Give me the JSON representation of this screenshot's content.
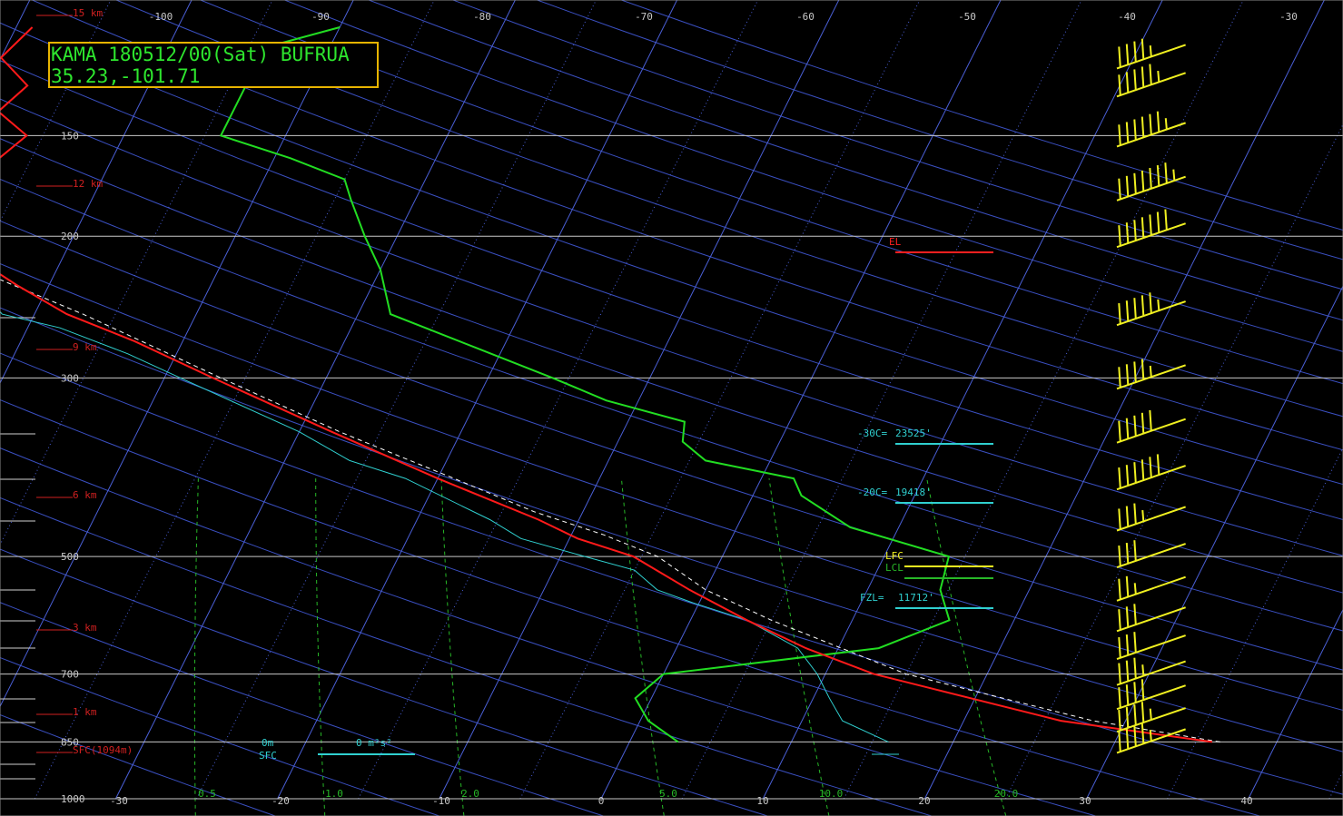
{
  "header": {
    "station_line": "KAMA 180512/00(Sat) BUFRUA",
    "location_line": "35.23,-101.71"
  },
  "colors": {
    "background": "#000000",
    "isobar": "#c8c8c8",
    "isotherm": "#4a5fd6",
    "dry_adiabat": "#3a4fc0",
    "mixing_ratio": "#27b827",
    "temperature": "#ff1a1a",
    "virtual_temperature": "#ff3030",
    "dewpoint": "#22dd22",
    "wetbulb": "#30d0d0",
    "parcel": "#ffffff",
    "wind_barb": "#f0f020",
    "height_label": "#d02020",
    "title_border": "#e8b400",
    "title_text": "#2ee62e"
  },
  "chart_data": {
    "type": "line",
    "chart_kind": "skew-t log-p sounding",
    "xlabel": "",
    "ylabel": "",
    "pressure_range": [
      1000,
      100
    ],
    "surface_temp_axis_range": [
      -30,
      40
    ],
    "top_temp_labels": [
      "-100",
      "-90",
      "-80",
      "-70",
      "-60",
      "-50",
      "-40",
      "-30"
    ],
    "bottom_temp_labels": [
      "-30",
      "-20",
      "-10",
      "0",
      "10",
      "20",
      "30",
      "40"
    ],
    "pressure_labels": [
      "150",
      "200",
      "300",
      "500",
      "700",
      "850",
      "1000"
    ],
    "height_labels": [
      "15 km",
      "12 km",
      "9 km",
      "6 km",
      "3 km",
      "1 km",
      "SFC(1094m)"
    ],
    "mixing_ratio_labels": [
      "0.5",
      "1.0",
      "2.0",
      "5.0",
      "10.0",
      "20.0"
    ],
    "series": [
      {
        "id": "temperature",
        "points": [
          [
            850,
            36
          ],
          [
            800,
            26
          ],
          [
            700,
            13
          ],
          [
            650,
            8
          ],
          [
            600,
            3.5
          ],
          [
            550,
            -1
          ],
          [
            500,
            -5.5
          ],
          [
            475,
            -9.5
          ],
          [
            450,
            -12.5
          ],
          [
            400,
            -20
          ],
          [
            350,
            -28
          ],
          [
            300,
            -37
          ],
          [
            270,
            -43
          ],
          [
            250,
            -48
          ],
          [
            230,
            -52
          ],
          [
            210,
            -56
          ],
          [
            200,
            -58.5
          ],
          [
            190,
            -57
          ],
          [
            180,
            -58
          ],
          [
            170,
            -57
          ],
          [
            160,
            -57
          ],
          [
            150,
            -56
          ],
          [
            140,
            -58.5
          ],
          [
            130,
            -57.5
          ],
          [
            120,
            -60
          ],
          [
            110,
            -59
          ]
        ]
      },
      {
        "id": "dewpoint",
        "points": [
          [
            850,
            3
          ],
          [
            800,
            0.5
          ],
          [
            750,
            -1
          ],
          [
            700,
            0
          ],
          [
            650,
            12.5
          ],
          [
            600,
            16
          ],
          [
            550,
            14.5
          ],
          [
            500,
            14
          ],
          [
            460,
            7
          ],
          [
            420,
            3
          ],
          [
            400,
            2
          ],
          [
            380,
            -4
          ],
          [
            360,
            -6
          ],
          [
            340,
            -6.5
          ],
          [
            320,
            -12
          ],
          [
            300,
            -16
          ],
          [
            250,
            -28
          ],
          [
            220,
            -30
          ],
          [
            200,
            -32
          ],
          [
            180,
            -34
          ],
          [
            170,
            -35
          ],
          [
            160,
            -39
          ],
          [
            150,
            -44
          ],
          [
            130,
            -44
          ],
          [
            120,
            -46
          ],
          [
            110,
            -40
          ]
        ]
      },
      {
        "id": "wetbulb",
        "points": [
          [
            850,
            16
          ],
          [
            800,
            12.5
          ],
          [
            750,
            11
          ],
          [
            700,
            9.5
          ],
          [
            650,
            7.5
          ],
          [
            600,
            3.5
          ],
          [
            570,
            -0.5
          ],
          [
            550,
            -3
          ],
          [
            520,
            -5
          ],
          [
            500,
            -8.5
          ],
          [
            475,
            -13
          ],
          [
            450,
            -15.5
          ],
          [
            400,
            -22
          ],
          [
            380,
            -26
          ],
          [
            350,
            -30
          ],
          [
            300,
            -39
          ],
          [
            280,
            -43
          ],
          [
            260,
            -48
          ],
          [
            250,
            -52
          ],
          [
            210,
            -57
          ]
        ]
      },
      {
        "id": "parcel",
        "points": [
          [
            850,
            36.5
          ],
          [
            800,
            28
          ],
          [
            700,
            15
          ],
          [
            600,
            5
          ],
          [
            550,
            0
          ],
          [
            500,
            -4
          ],
          [
            470,
            -8
          ],
          [
            440,
            -13
          ],
          [
            400,
            -19
          ],
          [
            350,
            -27.5
          ],
          [
            300,
            -36.5
          ],
          [
            250,
            -47
          ],
          [
            220,
            -55
          ],
          [
            210,
            -58
          ]
        ]
      }
    ],
    "levels": [
      {
        "label": "EL",
        "value": ""
      },
      {
        "label": "LFC",
        "value": ""
      },
      {
        "label": "LCL",
        "value": ""
      },
      {
        "label": "-30C=",
        "value": "23525'"
      },
      {
        "label": "-20C=",
        "value": "19418'"
      },
      {
        "label": "FZL=",
        "value": "11712'"
      }
    ],
    "storm_helicity": {
      "label": "0m",
      "sublabel": "SFC",
      "value": "0 m²s²"
    },
    "wind_barbs": [
      {
        "pressure": 850,
        "speed_kt": 45
      },
      {
        "pressure": 800,
        "speed_kt": 45
      },
      {
        "pressure": 750,
        "speed_kt": 40
      },
      {
        "pressure": 700,
        "speed_kt": 35
      },
      {
        "pressure": 650,
        "speed_kt": 30
      },
      {
        "pressure": 600,
        "speed_kt": 30
      },
      {
        "pressure": 550,
        "speed_kt": 25
      },
      {
        "pressure": 500,
        "speed_kt": 30
      },
      {
        "pressure": 450,
        "speed_kt": 35
      },
      {
        "pressure": 400,
        "speed_kt": 60
      },
      {
        "pressure": 350,
        "speed_kt": 50
      },
      {
        "pressure": 300,
        "speed_kt": 45
      },
      {
        "pressure": 250,
        "speed_kt": 55
      },
      {
        "pressure": 200,
        "speed_kt": 70
      },
      {
        "pressure": 175,
        "speed_kt": 75
      },
      {
        "pressure": 150,
        "speed_kt": 65
      },
      {
        "pressure": 130,
        "speed_kt": 55
      },
      {
        "pressure": 120,
        "speed_kt": 45
      }
    ]
  }
}
